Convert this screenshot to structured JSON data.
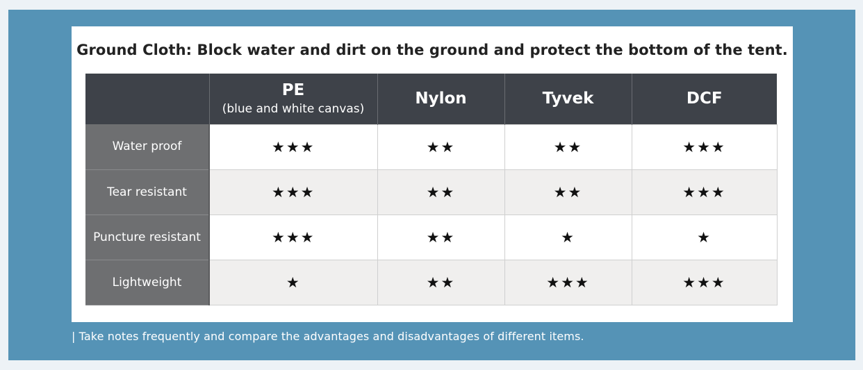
{
  "title": "Ground Cloth: Block water and dirt on the ground and protect the bottom of the tent.",
  "table": {
    "columns": [
      {
        "name": "PE",
        "sub": "(blue and white canvas)"
      },
      {
        "name": "Nylon",
        "sub": ""
      },
      {
        "name": "Tyvek",
        "sub": ""
      },
      {
        "name": "DCF",
        "sub": ""
      }
    ],
    "rows": [
      {
        "label": "Water proof",
        "values": [
          "★★★",
          "★★",
          "★★",
          "★★★"
        ]
      },
      {
        "label": "Tear resistant",
        "values": [
          "★★★",
          "★★",
          "★★",
          "★★★"
        ]
      },
      {
        "label": "Puncture resistant",
        "values": [
          "★★★",
          "★★",
          "★",
          "★"
        ]
      },
      {
        "label": "Lightweight",
        "values": [
          "★",
          "★★",
          "★★★",
          "★★★"
        ]
      }
    ]
  },
  "caption": "| Take notes frequently and compare the advantages and disadvantages of different items.",
  "colors": {
    "frame": "#5593b6",
    "header_bg": "#3e4249",
    "row_label_bg": "#6e6f71",
    "alt_row_bg": "#f0efee"
  }
}
